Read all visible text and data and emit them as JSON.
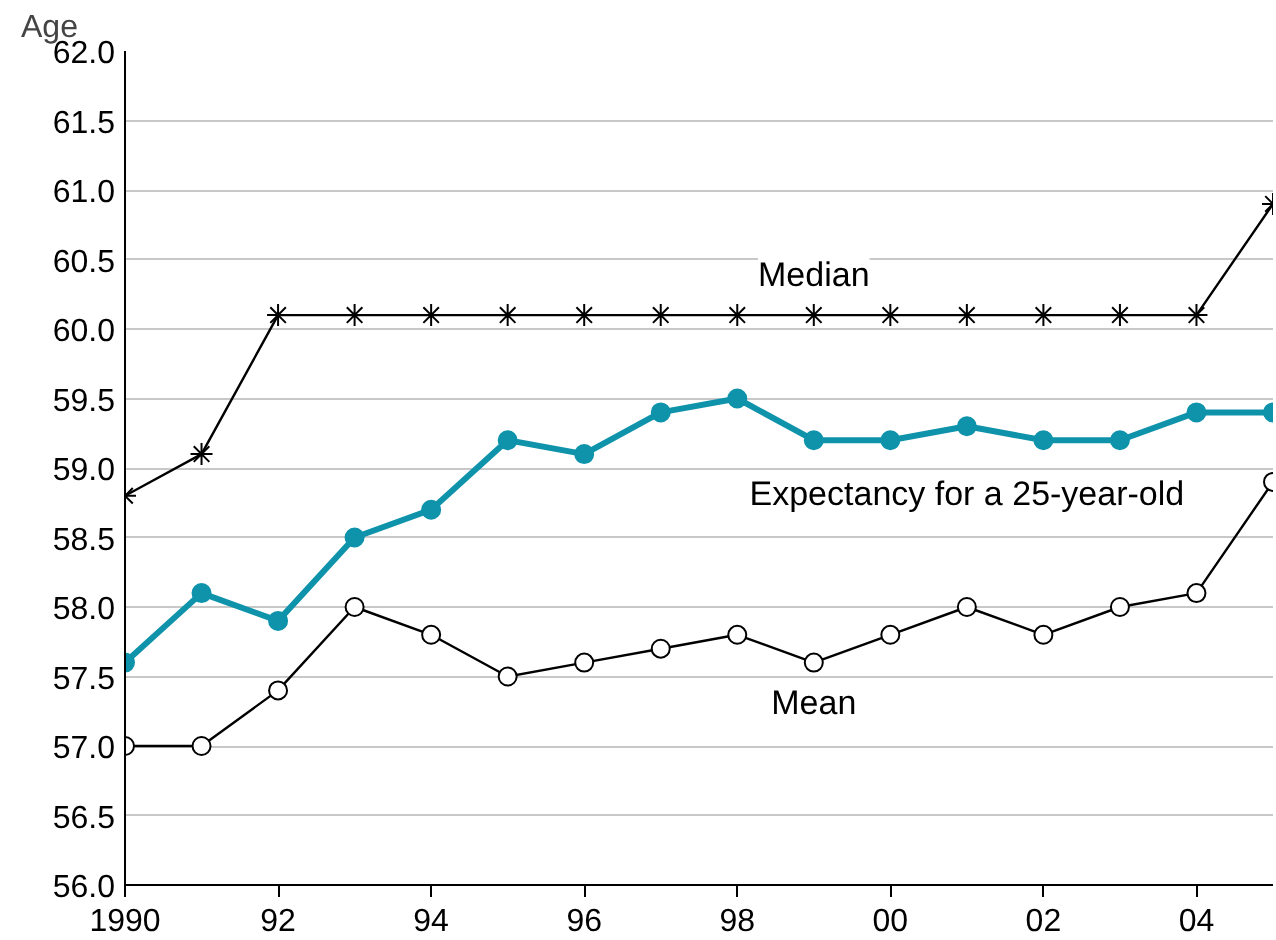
{
  "chart_data": {
    "type": "line",
    "ylabel": "Age",
    "x": [
      1990,
      1991,
      1992,
      1993,
      1994,
      1995,
      1996,
      1997,
      1998,
      1999,
      2000,
      2001,
      2002,
      2003,
      2004,
      2005
    ],
    "series": [
      {
        "name": "Median",
        "color": "#000000",
        "marker": "cross",
        "values": [
          58.8,
          59.1,
          60.1,
          60.1,
          60.1,
          60.1,
          60.1,
          60.1,
          60.1,
          60.1,
          60.1,
          60.1,
          60.1,
          60.1,
          60.1,
          60.9
        ]
      },
      {
        "name": "Expectancy for a 25-year-old",
        "color": "#0e93ab",
        "marker": "circle",
        "values": [
          57.6,
          58.1,
          57.9,
          58.5,
          58.7,
          59.2,
          59.1,
          59.4,
          59.5,
          59.2,
          59.2,
          59.3,
          59.2,
          59.2,
          59.4,
          59.4
        ]
      },
      {
        "name": "Mean",
        "color": "#000000",
        "marker": "circle",
        "values": [
          57.0,
          57.0,
          57.4,
          58.0,
          57.8,
          57.5,
          57.6,
          57.7,
          57.8,
          57.6,
          57.8,
          58.0,
          57.8,
          58.0,
          58.1,
          58.9
        ]
      }
    ],
    "xlim": [
      1990,
      2005
    ],
    "xticks": [
      {
        "value": 1990,
        "label": "1990"
      },
      {
        "value": 1992,
        "label": "92"
      },
      {
        "value": 1994,
        "label": "94"
      },
      {
        "value": 1996,
        "label": "96"
      },
      {
        "value": 1998,
        "label": "98"
      },
      {
        "value": 2000,
        "label": "00"
      },
      {
        "value": 2002,
        "label": "02"
      },
      {
        "value": 2004,
        "label": "04"
      }
    ],
    "ylim": [
      56,
      62
    ],
    "yticks": [
      {
        "value": 56,
        "label": "56.0"
      },
      {
        "value": 56.5,
        "label": "56.5"
      },
      {
        "value": 57,
        "label": "57.0"
      },
      {
        "value": 57.5,
        "label": "57.5"
      },
      {
        "value": 58,
        "label": "58.0"
      },
      {
        "value": 58.5,
        "label": "58.5"
      },
      {
        "value": 59,
        "label": "59.0"
      },
      {
        "value": 59.5,
        "label": "59.5"
      },
      {
        "value": 60,
        "label": "60.0"
      },
      {
        "value": 60.5,
        "label": "60.5"
      },
      {
        "value": 61,
        "label": "61.0"
      },
      {
        "value": 61.5,
        "label": "61.5"
      },
      {
        "value": 62,
        "label": "62.0"
      }
    ],
    "grid": "y"
  }
}
